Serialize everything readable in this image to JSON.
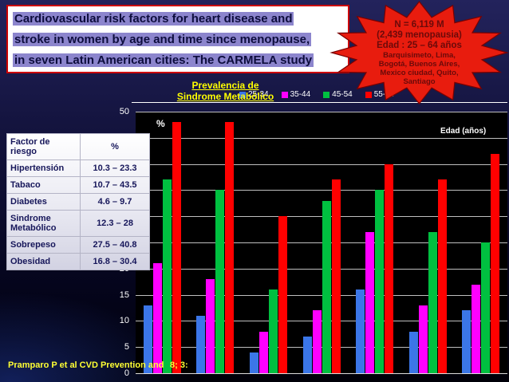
{
  "slide": {
    "title_lines": [
      "Cardiovascular risk factors for heart disease and",
      "stroke in women by age and time since menopause,",
      "in seven Latin American cities: The CARMELA study"
    ],
    "citation_left": "Pramparo P et al  CVD  Prevention and",
    "citation_right": "8; 3:"
  },
  "starburst": {
    "lines": [
      "N = 6,119 M",
      "(2,439 menopausia)",
      "Edad : 25 – 64 años",
      "Barquisimeto, Lima,",
      "Bogotá, Buenos Aires,",
      "Mexico ciudad, Quito,",
      "Santiago"
    ]
  },
  "table": {
    "headers": [
      "Factor de riesgo",
      "%"
    ],
    "rows": [
      [
        "Hipertensión",
        "10.3 – 23.3"
      ],
      [
        "Tabaco",
        "10.7 – 43.5"
      ],
      [
        "Diabetes",
        "4.6 – 9.7"
      ],
      [
        "Sindrome Metabólico",
        "12.3 – 28"
      ],
      [
        "Sobrepeso",
        "27.5 – 40.8"
      ],
      [
        "Obesidad",
        "16.8 – 30.4"
      ]
    ]
  },
  "chart_data": {
    "type": "bar",
    "title": "Prevalencia de Sindrome Metabólico",
    "title_lines": [
      "Prevalencia de",
      "Sindrome Metabólico"
    ],
    "ylabel": "%",
    "legend_title": "Edad (años)",
    "legend_position": "top",
    "grid": true,
    "plot_background": "#000000",
    "ylim": [
      0,
      50
    ],
    "ytick_step": 5,
    "categories": [
      "",
      "",
      "",
      "",
      "",
      "",
      ""
    ],
    "series": [
      {
        "name": "25-34",
        "color": "#3b76e8",
        "values": [
          13,
          11,
          4,
          7,
          16,
          8,
          12
        ]
      },
      {
        "name": "35-44",
        "color": "#ff00ff",
        "values": [
          21,
          18,
          8,
          12,
          27,
          13,
          17
        ]
      },
      {
        "name": "45-54",
        "color": "#00c040",
        "values": [
          37,
          35,
          16,
          33,
          35,
          27,
          25
        ]
      },
      {
        "name": "55-64",
        "color": "#ff0000",
        "values": [
          48,
          48,
          30,
          37,
          40,
          37,
          42
        ]
      }
    ]
  },
  "colors": {
    "starburst_red": "#e81c0e",
    "title_highlight": "#8c85cd",
    "title_border": "#cc0000",
    "accent_yellow": "#ffff00"
  }
}
